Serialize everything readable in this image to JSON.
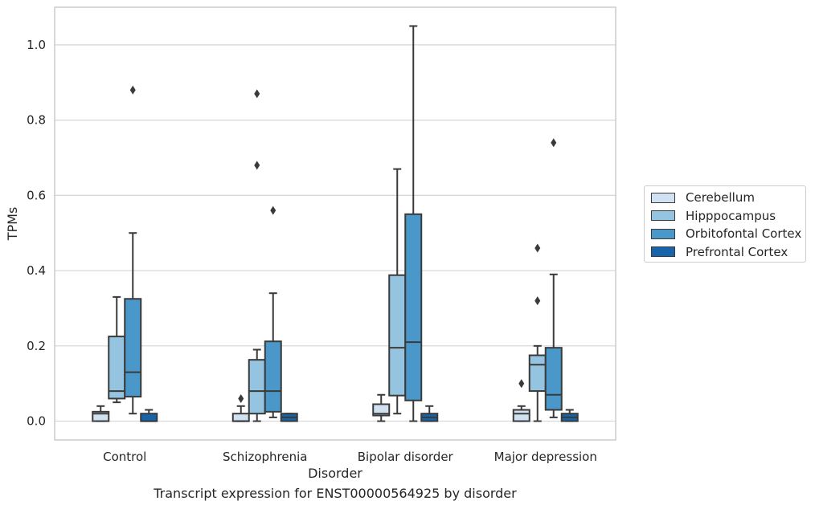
{
  "chart_data": {
    "type": "box",
    "xlabel": "Disorder",
    "ylabel": "TPMs",
    "ylim": [
      -0.05,
      1.1
    ],
    "yticks": [
      "0.0",
      "0.2",
      "0.4",
      "0.6",
      "0.8",
      "1.0"
    ],
    "grid": "horizontal",
    "legend_position": "right",
    "categories": [
      "Control",
      "Schizophrenia",
      "Bipolar disorder",
      "Major depression"
    ],
    "series": [
      {
        "name": "Cerebellum",
        "color": "#d0e1f2",
        "boxes": [
          {
            "whislo": 0.0,
            "q1": 0.0,
            "med": 0.02,
            "q3": 0.025,
            "whishi": 0.04,
            "fliers": []
          },
          {
            "whislo": 0.0,
            "q1": 0.0,
            "med": 0.0,
            "q3": 0.02,
            "whishi": 0.04,
            "fliers": [
              0.06
            ]
          },
          {
            "whislo": 0.0,
            "q1": 0.015,
            "med": 0.02,
            "q3": 0.045,
            "whishi": 0.07,
            "fliers": []
          },
          {
            "whislo": 0.0,
            "q1": 0.0,
            "med": 0.02,
            "q3": 0.03,
            "whishi": 0.04,
            "fliers": [
              0.1
            ]
          }
        ]
      },
      {
        "name": "Hipppocampus",
        "color": "#94c4df",
        "boxes": [
          {
            "whislo": 0.05,
            "q1": 0.06,
            "med": 0.08,
            "q3": 0.225,
            "whishi": 0.33,
            "fliers": []
          },
          {
            "whislo": 0.0,
            "q1": 0.02,
            "med": 0.08,
            "q3": 0.163,
            "whishi": 0.19,
            "fliers": [
              0.68,
              0.87
            ]
          },
          {
            "whislo": 0.02,
            "q1": 0.068,
            "med": 0.195,
            "q3": 0.388,
            "whishi": 0.67,
            "fliers": []
          },
          {
            "whislo": 0.0,
            "q1": 0.08,
            "med": 0.15,
            "q3": 0.175,
            "whishi": 0.2,
            "fliers": [
              0.32,
              0.46
            ]
          }
        ]
      },
      {
        "name": "Orbitofontal Cortex",
        "color": "#4a98c9",
        "boxes": [
          {
            "whislo": 0.02,
            "q1": 0.065,
            "med": 0.13,
            "q3": 0.325,
            "whishi": 0.5,
            "fliers": [
              0.88
            ]
          },
          {
            "whislo": 0.01,
            "q1": 0.025,
            "med": 0.08,
            "q3": 0.212,
            "whishi": 0.34,
            "fliers": [
              0.56
            ]
          },
          {
            "whislo": 0.0,
            "q1": 0.055,
            "med": 0.21,
            "q3": 0.55,
            "whishi": 1.05,
            "fliers": []
          },
          {
            "whislo": 0.01,
            "q1": 0.03,
            "med": 0.07,
            "q3": 0.195,
            "whishi": 0.39,
            "fliers": [
              0.74
            ]
          }
        ]
      },
      {
        "name": "Prefrontal Cortex",
        "color": "#1764ab",
        "boxes": [
          {
            "whislo": 0.0,
            "q1": 0.0,
            "med": 0.0,
            "q3": 0.02,
            "whishi": 0.03,
            "fliers": []
          },
          {
            "whislo": 0.0,
            "q1": 0.0,
            "med": 0.01,
            "q3": 0.02,
            "whishi": 0.02,
            "fliers": []
          },
          {
            "whislo": 0.0,
            "q1": 0.0,
            "med": 0.01,
            "q3": 0.02,
            "whishi": 0.04,
            "fliers": []
          },
          {
            "whislo": 0.0,
            "q1": 0.0,
            "med": 0.01,
            "q3": 0.02,
            "whishi": 0.03,
            "fliers": []
          }
        ]
      }
    ]
  },
  "caption": "Transcript expression for ENST00000564925 by disorder"
}
